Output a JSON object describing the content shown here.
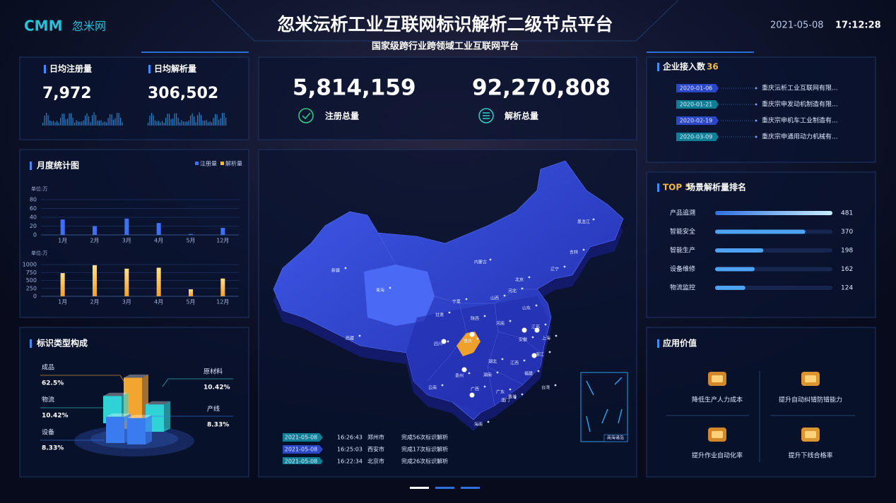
{
  "header": {
    "logo_mark": "CMM",
    "logo_text": "忽米网",
    "title": "忽米沄析工业互联网标识解析二级节点平台",
    "subtitle": "国家级跨行业跨领域工业互联网平台",
    "date": "2021-05-08",
    "time": "17:12:28"
  },
  "stats": [
    {
      "label": "日均注册量",
      "value": "7,972"
    },
    {
      "label": "日均解析量",
      "value": "306,502"
    }
  ],
  "totals": [
    {
      "value": "5,814,159",
      "label": "注册总量"
    },
    {
      "value": "92,270,808",
      "label": "解析总量"
    }
  ],
  "enterprises": {
    "title": "企业接入数",
    "count": "36",
    "rows": [
      {
        "date": "2020-01-06",
        "name": "重庆沄析工业互联网有限..."
      },
      {
        "date": "2020-01-21",
        "name": "重庆宗申发动机制造有限..."
      },
      {
        "date": "2020-02-19",
        "name": "重庆宗申机车工业制造有..."
      },
      {
        "date": "2020-03-09",
        "name": "重庆宗申通用动力机械有..."
      }
    ]
  },
  "monthly": {
    "title": "月度统计图"
  },
  "composition": {
    "title": "标识类型构成"
  },
  "chart_data": [
    {
      "type": "bar",
      "unit": "单位:万",
      "categories": [
        "1月",
        "2月",
        "3月",
        "4月",
        "5月",
        "12月"
      ],
      "series": [
        {
          "name": "注册量",
          "color": "#3f6ff5",
          "values": [
            35,
            20,
            37,
            27,
            2,
            16
          ]
        }
      ],
      "ylim": [
        0,
        80
      ],
      "yticks": [
        0,
        20,
        40,
        60,
        80
      ],
      "grid": true
    },
    {
      "type": "bar",
      "unit": "单位:万",
      "categories": [
        "1月",
        "2月",
        "3月",
        "4月",
        "5月",
        "12月"
      ],
      "series": [
        {
          "name": "解析量",
          "color": "#f5b84a",
          "values": [
            730,
            980,
            870,
            900,
            220,
            560
          ]
        }
      ],
      "ylim": [
        0,
        1000
      ],
      "yticks": [
        0,
        250,
        500,
        750,
        1000
      ],
      "grid": true
    },
    {
      "type": "hbar",
      "title_prefix": "TOP 5",
      "title": "场景解析量排名",
      "color": "#4fa3f7",
      "categories": [
        "产品追溯",
        "智能安全",
        "智能生产",
        "设备维修",
        "物流监控"
      ],
      "values": [
        481,
        370,
        198,
        162,
        124
      ]
    },
    {
      "type": "bar3d",
      "categories": [
        "成品",
        "物流",
        "设备",
        "原材料",
        "产线"
      ],
      "values": [
        62.5,
        10.42,
        8.33,
        10.42,
        8.33
      ],
      "value_labels": [
        "62.5%",
        "10.42%",
        "8.33%",
        "10.42%",
        "8.33%"
      ],
      "colors": [
        "#f3a531",
        "#2fd3d6",
        "#3a7bf0",
        "#2fd3d6",
        "#3a7bf0"
      ]
    }
  ],
  "map": {
    "labels": [
      "新疆",
      "西藏",
      "青海",
      "内蒙古",
      "黑龙江",
      "吉林",
      "辽宁",
      "甘肃",
      "宁夏",
      "山西",
      "河北",
      "北京",
      "山东",
      "河南",
      "陕西",
      "四川",
      "重庆",
      "湖北",
      "安徽",
      "江苏",
      "上海",
      "浙江",
      "湖南",
      "江西",
      "福建",
      "贵州",
      "云南",
      "广西",
      "广东",
      "香港",
      "澳门",
      "台湾",
      "海南"
    ],
    "inset_label": "南海诸岛"
  },
  "ticker": [
    {
      "date": "2021-05-08",
      "time": "16:26:43",
      "city": "郑州市",
      "text": "完成56次标识解析"
    },
    {
      "date": "2021-05-08",
      "time": "16:25:03",
      "city": "西安市",
      "text": "完成17次标识解析"
    },
    {
      "date": "2021-05-08",
      "time": "16:22:34",
      "city": "北京市",
      "text": "完成26次标识解析"
    }
  ],
  "app_value": {
    "title": "应用价值",
    "items": [
      "降低生产人力成本",
      "提升自动纠错防错能力",
      "提升作业自动化率",
      "提升下线合格率"
    ]
  }
}
